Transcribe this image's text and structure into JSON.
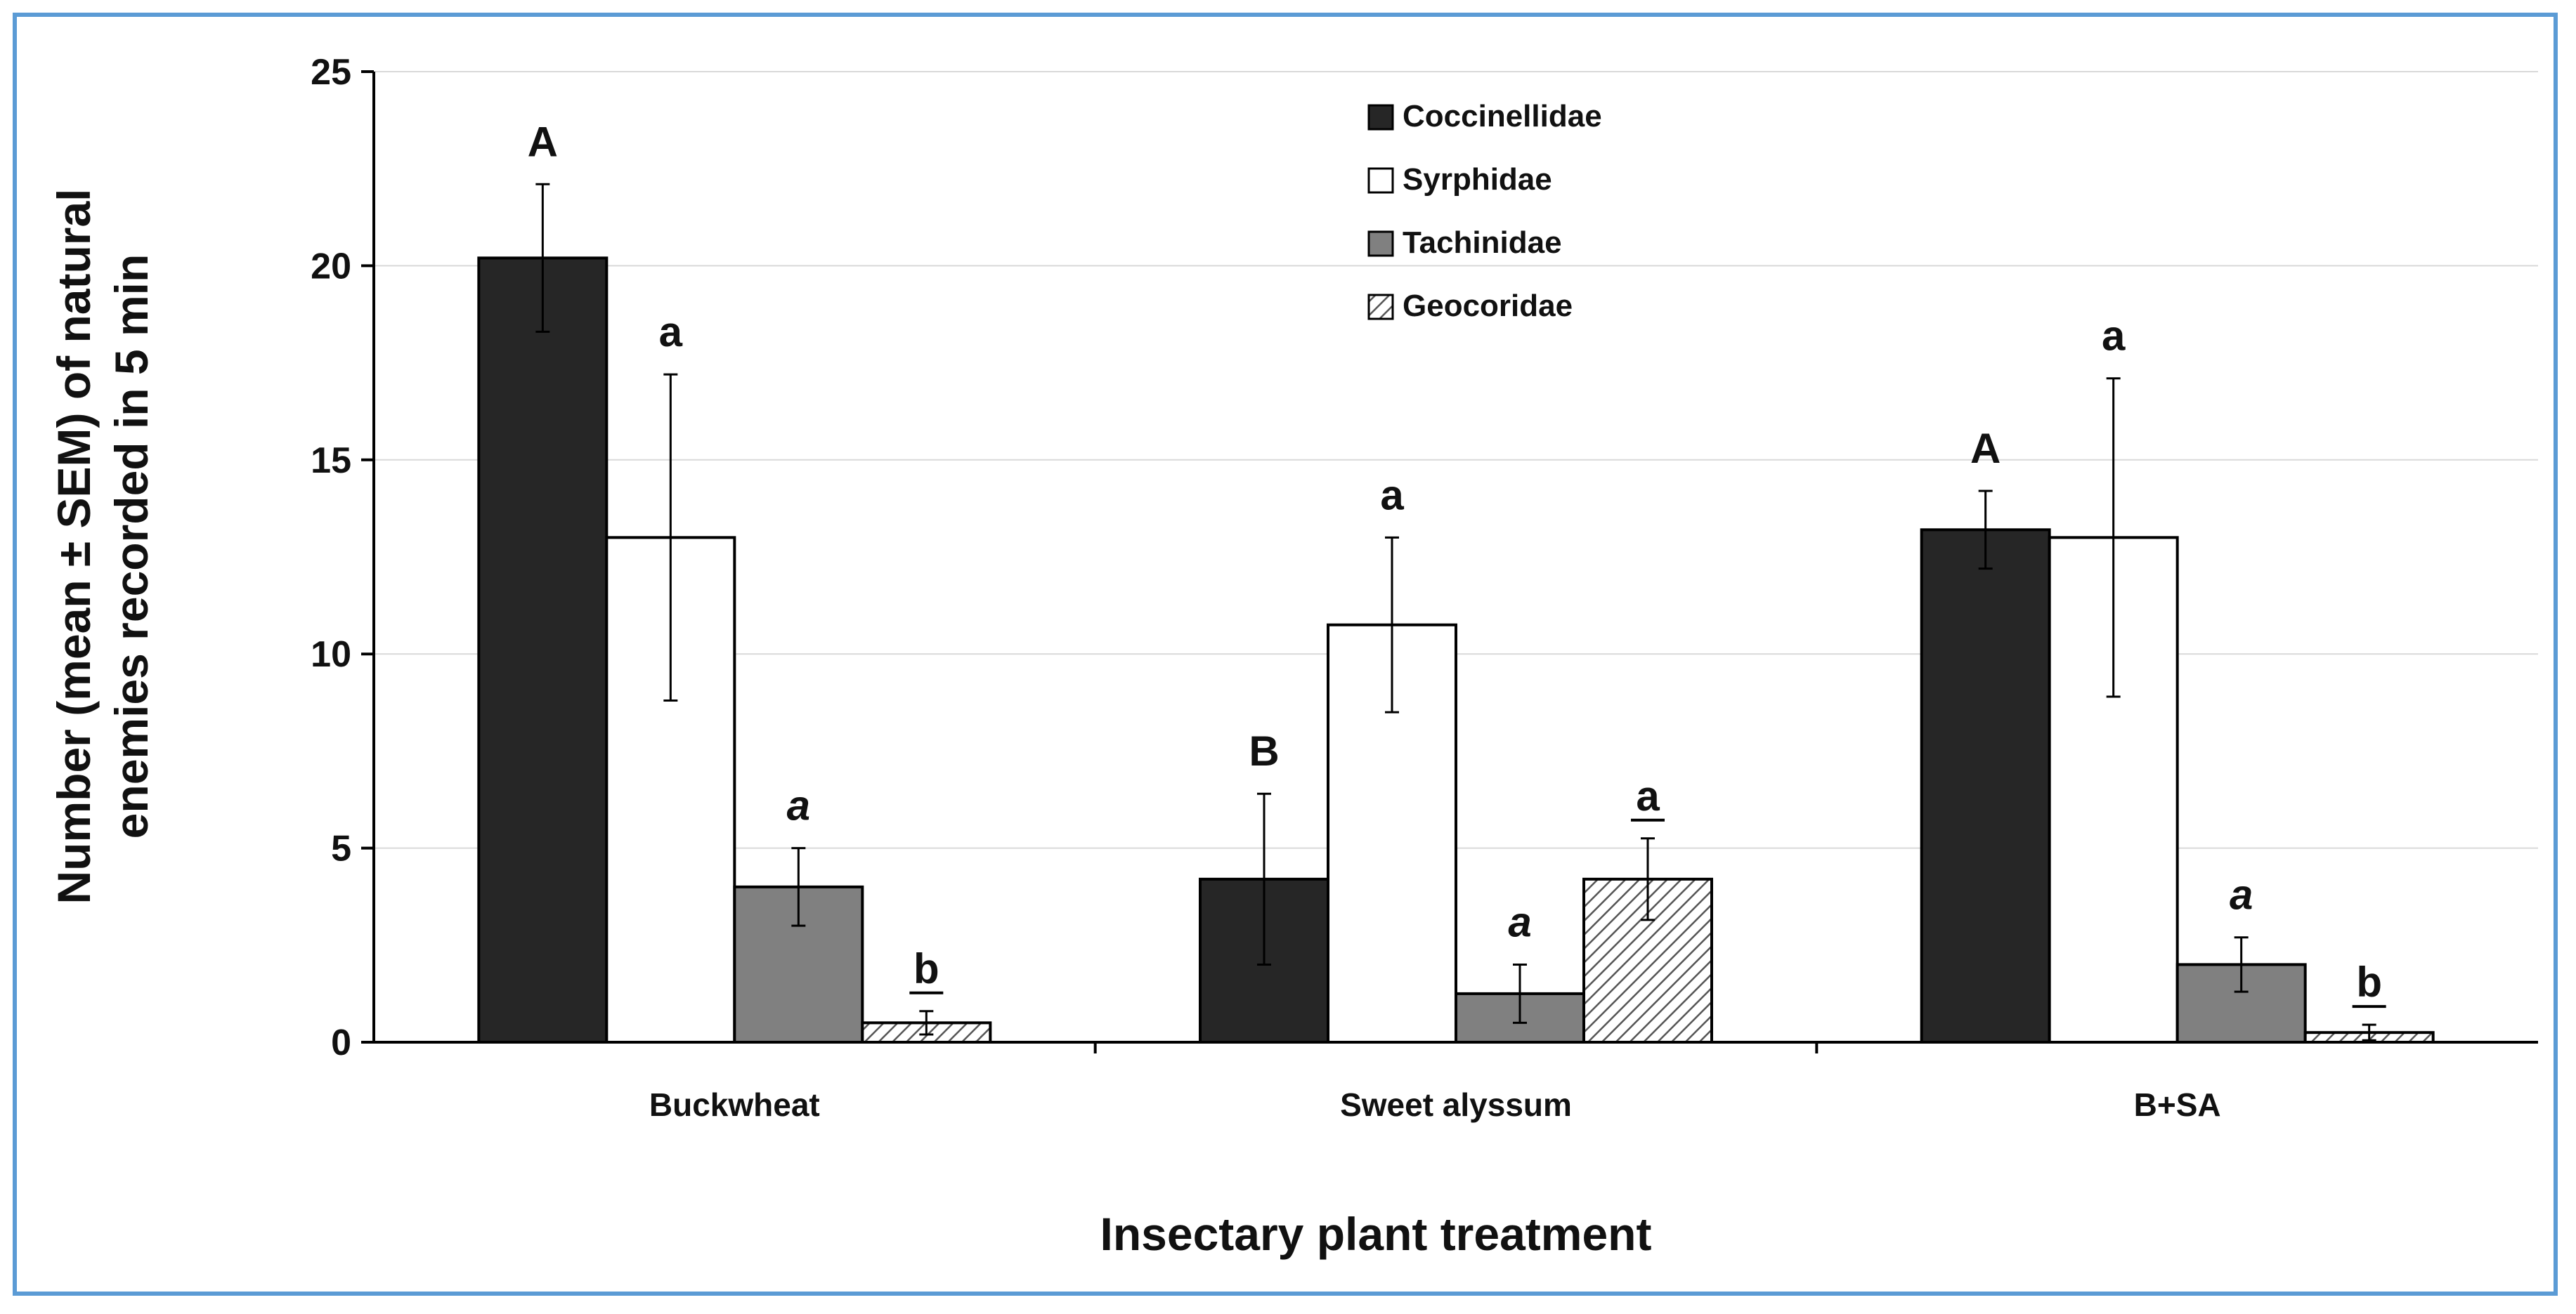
{
  "chart_data": {
    "type": "bar",
    "title": "",
    "xlabel": "Insectary plant treatment",
    "ylabel_lines": [
      "Number (mean ± SEM) of natural",
      "enemies recorded in 5 min"
    ],
    "ylim": [
      0,
      25
    ],
    "yticks": [
      0,
      5,
      10,
      15,
      20,
      25
    ],
    "grid": true,
    "legend_position": "top-center",
    "categories": [
      "Buckwheat",
      "Sweet alyssum",
      "B+SA"
    ],
    "series": [
      {
        "name": "Coccinellidae",
        "fill": "#262626",
        "pattern": "solid",
        "values": [
          20.2,
          4.2,
          13.2
        ],
        "err": [
          1.9,
          2.2,
          1.0
        ],
        "letters": [
          "A",
          "B",
          "A"
        ],
        "letter_style": "normal"
      },
      {
        "name": "Syrphidae",
        "fill": "#ffffff",
        "pattern": "solid",
        "values": [
          13.0,
          10.75,
          13.0
        ],
        "err": [
          4.2,
          2.25,
          4.1
        ],
        "letters": [
          "a",
          "a",
          "a"
        ],
        "letter_style": "normal"
      },
      {
        "name": "Tachinidae",
        "fill": "#808080",
        "pattern": "solid",
        "values": [
          4.0,
          1.25,
          2.0
        ],
        "err": [
          1.0,
          0.75,
          0.7
        ],
        "letters": [
          "a",
          "a",
          "a"
        ],
        "letter_style": "italic"
      },
      {
        "name": "Geocoridae",
        "fill": "#d9d9d9",
        "pattern": "hatch",
        "values": [
          0.5,
          4.2,
          0.25
        ],
        "err": [
          0.3,
          1.05,
          0.2
        ],
        "letters": [
          "b",
          "a",
          "b"
        ],
        "letter_style": "underline"
      }
    ]
  }
}
